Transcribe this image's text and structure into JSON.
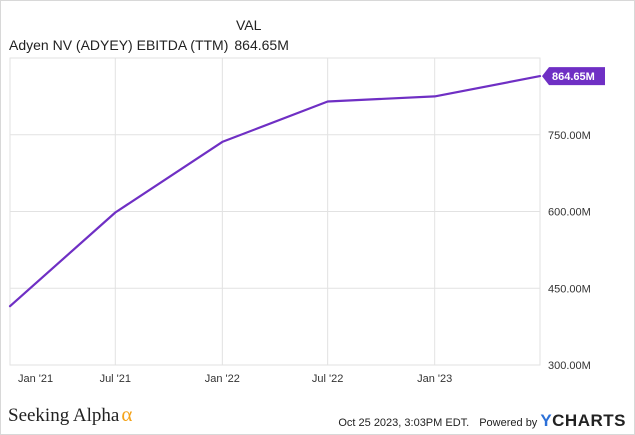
{
  "header": {
    "column_label": "VAL",
    "series_label": "Adyen NV (ADYEY) EBITDA (TTM)",
    "series_value": "864.65M"
  },
  "chart_data": {
    "type": "line",
    "title": "",
    "xlabel": "",
    "ylabel": "",
    "x_tick_labels": [
      "Jan '21",
      "Jul '21",
      "Jan '22",
      "Jul '22",
      "Jan '23"
    ],
    "y_tick_labels": [
      "300.00M",
      "450.00M",
      "600.00M",
      "750.00M"
    ],
    "ylim": [
      300,
      900
    ],
    "y_unit": "M",
    "grid": true,
    "series": [
      {
        "name": "Adyen NV (ADYEY) EBITDA (TTM)",
        "color": "#6f2fc4",
        "points": [
          {
            "x": "2020-12-31",
            "y": 415.0
          },
          {
            "x": "2021-06-30",
            "y": 598.0
          },
          {
            "x": "2021-12-31",
            "y": 736.0
          },
          {
            "x": "2022-06-30",
            "y": 815.0
          },
          {
            "x": "2022-12-31",
            "y": 825.0
          },
          {
            "x": "2023-06-30",
            "y": 864.65
          }
        ]
      }
    ],
    "last_value_label": "864.65M"
  },
  "footer": {
    "brand": "Seeking Alpha",
    "brand_symbol": "α",
    "timestamp": "Oct 25 2023, 3:03PM EDT.",
    "powered_by": "Powered by",
    "provider_y": "Y",
    "provider_rest": "CHARTS"
  },
  "colors": {
    "line": "#6f2fc4",
    "grid": "#e2e2e2",
    "axis_text": "#333333",
    "brand_alpha": "#f4a31a",
    "ycharts_y": "#2c70d8"
  }
}
